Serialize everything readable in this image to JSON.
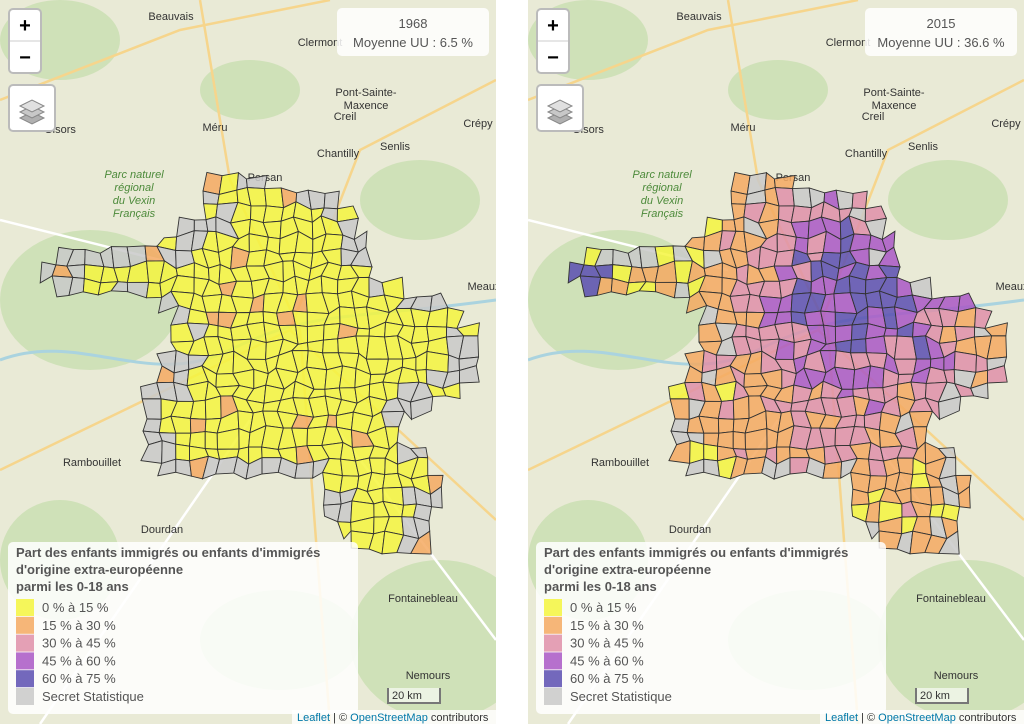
{
  "zoom_in": "+",
  "zoom_out": "−",
  "maps": [
    {
      "year": "1968",
      "average": "Moyenne UU : 6.5 %"
    },
    {
      "year": "2015",
      "average": "Moyenne UU : 36.6 %"
    }
  ],
  "legend": {
    "title": [
      "Part des enfants immigrés ou enfants d'immigrés",
      "d'origine extra-européenne",
      "parmi les 0-18 ans"
    ],
    "items": [
      {
        "label": "0 % à 15 %",
        "color": "#f5f53e"
      },
      {
        "label": "15 % à 30 %",
        "color": "#f5a962"
      },
      {
        "label": "30 % à 45 %",
        "color": "#df8fa9"
      },
      {
        "label": "45 % à 60 %",
        "color": "#a957c6"
      },
      {
        "label": "60 % à 75 %",
        "color": "#5a4db2"
      },
      {
        "label": "Secret Statistique",
        "color": "#c9c9c9"
      }
    ]
  },
  "scale": "20 km",
  "attribution": {
    "leaflet": "Leaflet",
    "separator": "| ©",
    "osm": "OpenStreetMap",
    "suffix": "contributors"
  },
  "places": [
    {
      "lines": [
        "Beauvais"
      ]
    },
    {
      "lines": [
        "Clermont"
      ]
    },
    {
      "lines": [
        "Gisors"
      ]
    },
    {
      "lines": [
        "Pont-Sainte-",
        "Maxence"
      ]
    },
    {
      "lines": [
        "Creil"
      ]
    },
    {
      "lines": [
        "Méru"
      ]
    },
    {
      "lines": [
        "Senlis"
      ]
    },
    {
      "lines": [
        "Chantilly"
      ]
    },
    {
      "lines": [
        "Crépy"
      ]
    },
    {
      "lines": [
        "Persan"
      ]
    },
    {
      "lines": [
        "Parc naturel",
        "régional",
        "du Vexin",
        "Français"
      ]
    },
    {
      "lines": [
        "Rambouillet"
      ]
    },
    {
      "lines": [
        "Dourdan"
      ]
    },
    {
      "lines": [
        "Fontainebleau"
      ]
    },
    {
      "lines": [
        "Nemours"
      ]
    },
    {
      "lines": [
        "Meaux"
      ]
    }
  ]
}
